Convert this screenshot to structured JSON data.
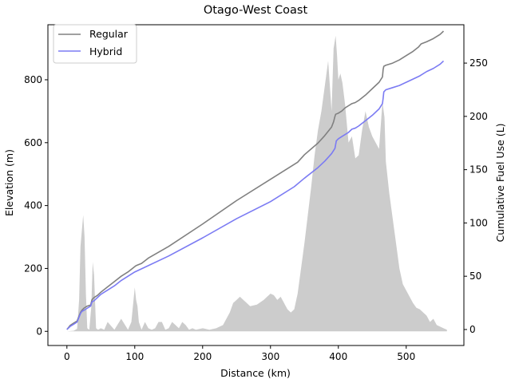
{
  "chart_data": {
    "type": "line",
    "title": "Otago-West Coast",
    "xlabel": "Distance (km)",
    "ylabel": "Elevation (m)",
    "y2label": "Cumulative Fuel Use (L)",
    "xlim": [
      -28,
      585
    ],
    "ylim": [
      -45,
      975
    ],
    "y2lim": [
      -15,
      286
    ],
    "xticks": [
      0,
      100,
      200,
      300,
      400,
      500
    ],
    "yticks": [
      0,
      200,
      400,
      600,
      800
    ],
    "y2ticks": [
      0,
      50,
      100,
      150,
      200,
      250
    ],
    "legend_position": "top-left",
    "grid": false,
    "colors": {
      "regular": "#808080",
      "hybrid": "#7b7bf3",
      "elevation": "#cccccc"
    },
    "elevation": {
      "x": [
        0,
        10,
        15,
        18,
        20,
        22,
        24,
        26,
        28,
        30,
        33,
        36,
        38,
        40,
        43,
        46,
        50,
        55,
        60,
        70,
        80,
        90,
        95,
        100,
        102,
        104,
        106,
        110,
        115,
        120,
        125,
        130,
        135,
        140,
        145,
        150,
        155,
        160,
        165,
        170,
        175,
        180,
        185,
        190,
        200,
        210,
        220,
        230,
        240,
        245,
        250,
        255,
        260,
        265,
        270,
        280,
        290,
        295,
        300,
        305,
        310,
        315,
        320,
        325,
        330,
        335,
        340,
        345,
        350,
        355,
        360,
        365,
        370,
        375,
        380,
        385,
        390,
        393,
        396,
        398,
        400,
        403,
        406,
        410,
        415,
        420,
        425,
        430,
        435,
        440,
        445,
        450,
        455,
        460,
        465,
        468,
        470,
        475,
        480,
        485,
        490,
        495,
        500,
        505,
        510,
        515,
        520,
        525,
        530,
        535,
        540,
        545,
        550,
        555,
        560
      ],
      "values": [
        0,
        2,
        8,
        100,
        270,
        320,
        370,
        300,
        120,
        10,
        5,
        80,
        220,
        180,
        10,
        5,
        10,
        5,
        30,
        5,
        40,
        5,
        30,
        140,
        100,
        80,
        30,
        5,
        30,
        10,
        5,
        10,
        30,
        30,
        5,
        10,
        30,
        20,
        10,
        30,
        20,
        5,
        10,
        5,
        10,
        5,
        10,
        20,
        60,
        90,
        100,
        110,
        100,
        90,
        80,
        85,
        100,
        110,
        120,
        115,
        100,
        110,
        90,
        70,
        60,
        70,
        120,
        200,
        280,
        370,
        460,
        560,
        640,
        700,
        780,
        860,
        700,
        900,
        940,
        880,
        800,
        820,
        790,
        720,
        600,
        620,
        550,
        560,
        640,
        700,
        650,
        620,
        600,
        580,
        730,
        680,
        540,
        440,
        360,
        280,
        200,
        150,
        130,
        110,
        90,
        75,
        70,
        60,
        50,
        30,
        40,
        20,
        15,
        10,
        5
      ]
    },
    "series": [
      {
        "name": "Regular",
        "x": [
          0,
          5,
          10,
          15,
          20,
          22,
          25,
          30,
          35,
          37,
          40,
          45,
          50,
          60,
          70,
          80,
          90,
          100,
          102,
          110,
          120,
          150,
          200,
          250,
          300,
          340,
          350,
          370,
          380,
          390,
          393,
          395,
          396,
          400,
          405,
          410,
          415,
          420,
          425,
          430,
          440,
          450,
          460,
          465,
          466,
          467,
          470,
          480,
          490,
          500,
          510,
          518,
          522,
          530,
          540,
          550,
          555
        ],
        "values": [
          0,
          4,
          6,
          8,
          16,
          18,
          20,
          22,
          23,
          28,
          30,
          32,
          35,
          40,
          45,
          50,
          54,
          59,
          60,
          62,
          67,
          78,
          99,
          121,
          141,
          157,
          164,
          175,
          182,
          190,
          195,
          200,
          202,
          203,
          205,
          208,
          210,
          212,
          213,
          215,
          220,
          226,
          232,
          237,
          244,
          247,
          248,
          250,
          253,
          257,
          261,
          265,
          268,
          270,
          273,
          277,
          280
        ]
      },
      {
        "name": "Hybrid",
        "x": [
          0,
          5,
          10,
          15,
          20,
          22,
          25,
          30,
          35,
          37,
          40,
          45,
          50,
          60,
          70,
          80,
          90,
          100,
          110,
          150,
          200,
          250,
          300,
          335,
          350,
          370,
          380,
          390,
          395,
          397,
          400,
          405,
          410,
          415,
          420,
          425,
          430,
          440,
          450,
          460,
          465,
          466,
          467,
          470,
          480,
          490,
          500,
          510,
          520,
          530,
          540,
          550,
          555
        ],
        "values": [
          0,
          3,
          5,
          7,
          15,
          17,
          18,
          20,
          22,
          26,
          27,
          30,
          33,
          37,
          41,
          46,
          50,
          54,
          57,
          69,
          86,
          104,
          120,
          134,
          142,
          152,
          158,
          165,
          170,
          177,
          179,
          181,
          183,
          185,
          188,
          189,
          191,
          196,
          201,
          207,
          212,
          217,
          223,
          225,
          227,
          229,
          232,
          235,
          238,
          242,
          245,
          249,
          252
        ]
      }
    ]
  }
}
